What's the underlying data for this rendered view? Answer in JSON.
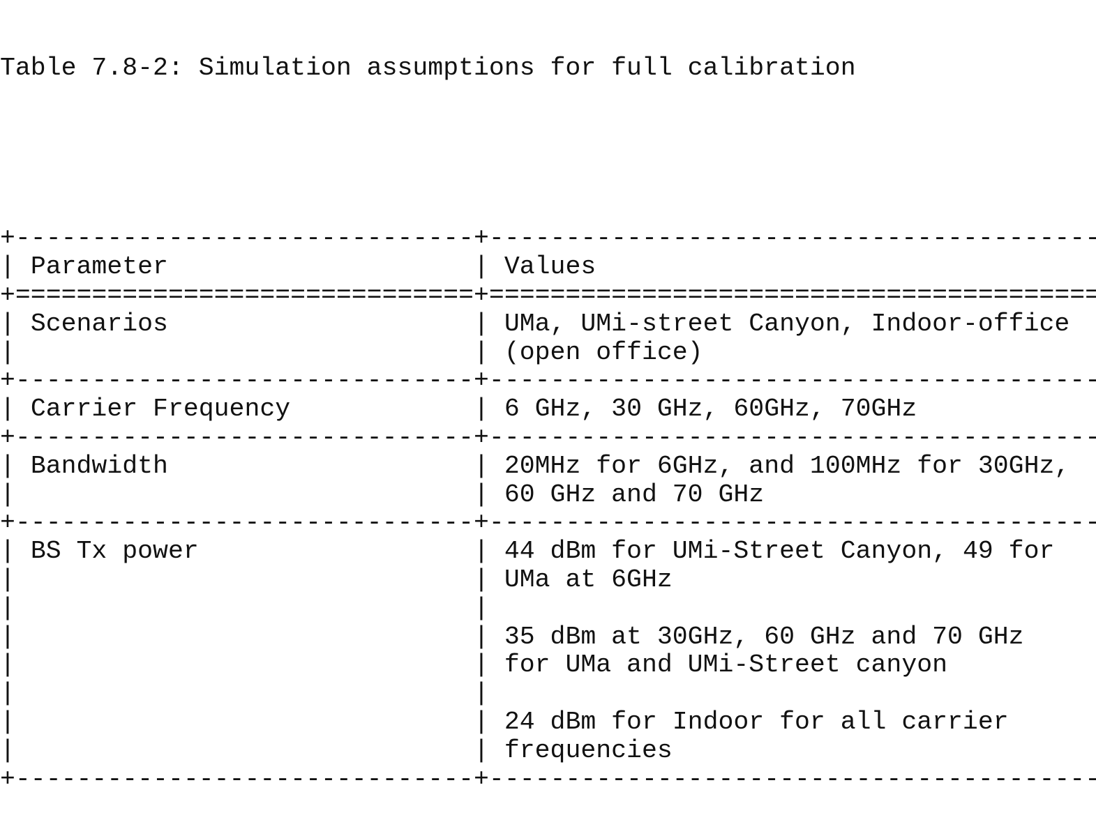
{
  "document": {
    "caption": "Table 7.8-2: Simulation assumptions for full calibration",
    "table": {
      "columns": [
        {
          "header": "Parameter",
          "width": 29
        },
        {
          "header": "Values",
          "width": 39
        }
      ],
      "rows": [
        {
          "parameter": [
            "Scenarios",
            ""
          ],
          "values": [
            "UMa, UMi-street Canyon, Indoor-office",
            "(open office)"
          ]
        },
        {
          "parameter": [
            "Carrier Frequency"
          ],
          "values": [
            "6 GHz, 30 GHz, 60GHz, 70GHz"
          ]
        },
        {
          "parameter": [
            "Bandwidth",
            ""
          ],
          "values": [
            "20MHz for 6GHz, and 100MHz for 30GHz,",
            "60 GHz and 70 GHz"
          ]
        },
        {
          "parameter": [
            "BS Tx power",
            "",
            "",
            "",
            "",
            "",
            "",
            ""
          ],
          "values": [
            "44 dBm for UMi-Street Canyon, 49 for",
            "UMa at 6GHz",
            "",
            "35 dBm at 30GHz, 60 GHz and 70 GHz",
            "for UMa and UMi-Street canyon",
            "",
            "24 dBm for Indoor for all carrier",
            "frequencies"
          ]
        }
      ]
    }
  }
}
